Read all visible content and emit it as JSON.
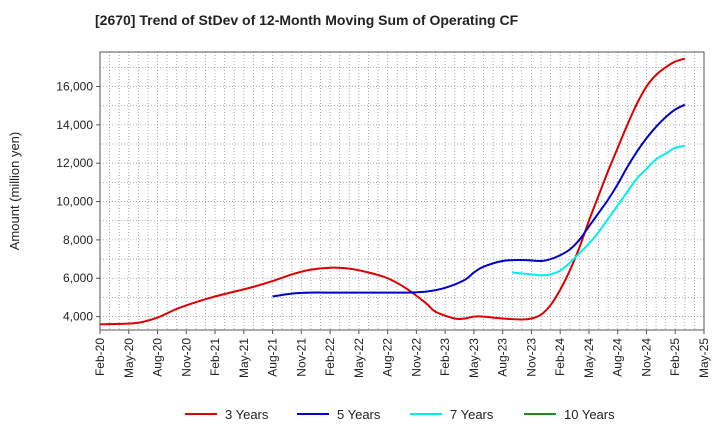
{
  "chart_data": {
    "type": "line",
    "title": "[2670]  Trend of StDev of 12-Month Moving Sum of Operating CF",
    "xlabel": "",
    "ylabel": "Amount (million yen)",
    "x_ticks": [
      "Feb-20",
      "May-20",
      "Aug-20",
      "Nov-20",
      "Feb-21",
      "May-21",
      "Aug-21",
      "Nov-21",
      "Feb-22",
      "May-22",
      "Aug-22",
      "Nov-22",
      "Feb-23",
      "May-23",
      "Aug-23",
      "Nov-23",
      "Feb-24",
      "May-24",
      "Aug-24",
      "Nov-24",
      "Feb-25",
      "May-25"
    ],
    "y_ticks": [
      4000,
      6000,
      8000,
      10000,
      12000,
      14000,
      16000
    ],
    "y_tick_labels": [
      "4,000",
      "6,000",
      "8,000",
      "10,000",
      "12,000",
      "14,000",
      "16,000"
    ],
    "xlim": [
      0,
      63
    ],
    "ylim": [
      3300,
      17800
    ],
    "grid": true,
    "legend_position": "bottom",
    "series": [
      {
        "name": "3 Years",
        "color": "#dd0000",
        "points": [
          [
            0,
            3600
          ],
          [
            2,
            3620
          ],
          [
            4,
            3680
          ],
          [
            6,
            3950
          ],
          [
            8,
            4400
          ],
          [
            10,
            4750
          ],
          [
            12,
            5050
          ],
          [
            14,
            5300
          ],
          [
            16,
            5550
          ],
          [
            18,
            5850
          ],
          [
            20,
            6200
          ],
          [
            22,
            6450
          ],
          [
            24,
            6550
          ],
          [
            26,
            6500
          ],
          [
            28,
            6300
          ],
          [
            30,
            6000
          ],
          [
            32,
            5450
          ],
          [
            34,
            4700
          ],
          [
            35,
            4250
          ],
          [
            37,
            3900
          ],
          [
            38,
            3900
          ],
          [
            39,
            4000
          ],
          [
            40,
            4000
          ],
          [
            42,
            3900
          ],
          [
            44,
            3850
          ],
          [
            45,
            3900
          ],
          [
            46,
            4100
          ],
          [
            47,
            4600
          ],
          [
            48,
            5400
          ],
          [
            49,
            6400
          ],
          [
            50,
            7600
          ],
          [
            51,
            9000
          ],
          [
            52,
            10300
          ],
          [
            53,
            11600
          ],
          [
            54,
            12800
          ],
          [
            55,
            14000
          ],
          [
            56,
            15100
          ],
          [
            57,
            16000
          ],
          [
            58,
            16600
          ],
          [
            59,
            17000
          ],
          [
            60,
            17300
          ],
          [
            61,
            17450
          ]
        ]
      },
      {
        "name": "5 Years",
        "color": "#0000cc",
        "points": [
          [
            18,
            5050
          ],
          [
            20,
            5200
          ],
          [
            22,
            5250
          ],
          [
            24,
            5250
          ],
          [
            26,
            5250
          ],
          [
            28,
            5250
          ],
          [
            30,
            5250
          ],
          [
            32,
            5250
          ],
          [
            34,
            5300
          ],
          [
            36,
            5500
          ],
          [
            38,
            5900
          ],
          [
            39,
            6300
          ],
          [
            40,
            6600
          ],
          [
            42,
            6900
          ],
          [
            44,
            6950
          ],
          [
            46,
            6900
          ],
          [
            47,
            7000
          ],
          [
            48,
            7200
          ],
          [
            49,
            7500
          ],
          [
            50,
            8000
          ],
          [
            51,
            8700
          ],
          [
            52,
            9400
          ],
          [
            53,
            10100
          ],
          [
            54,
            10900
          ],
          [
            55,
            11800
          ],
          [
            56,
            12600
          ],
          [
            57,
            13300
          ],
          [
            58,
            13900
          ],
          [
            59,
            14400
          ],
          [
            60,
            14800
          ],
          [
            61,
            15050
          ]
        ]
      },
      {
        "name": "7 Years",
        "color": "#00eeee",
        "points": [
          [
            43,
            6300
          ],
          [
            45,
            6200
          ],
          [
            46,
            6150
          ],
          [
            47,
            6200
          ],
          [
            48,
            6400
          ],
          [
            49,
            6800
          ],
          [
            50,
            7300
          ],
          [
            51,
            7800
          ],
          [
            52,
            8400
          ],
          [
            53,
            9100
          ],
          [
            54,
            9800
          ],
          [
            55,
            10500
          ],
          [
            56,
            11200
          ],
          [
            57,
            11700
          ],
          [
            58,
            12200
          ],
          [
            59,
            12500
          ],
          [
            60,
            12800
          ],
          [
            61,
            12900
          ]
        ]
      },
      {
        "name": "10 Years",
        "color": "#228822",
        "points": []
      }
    ]
  }
}
